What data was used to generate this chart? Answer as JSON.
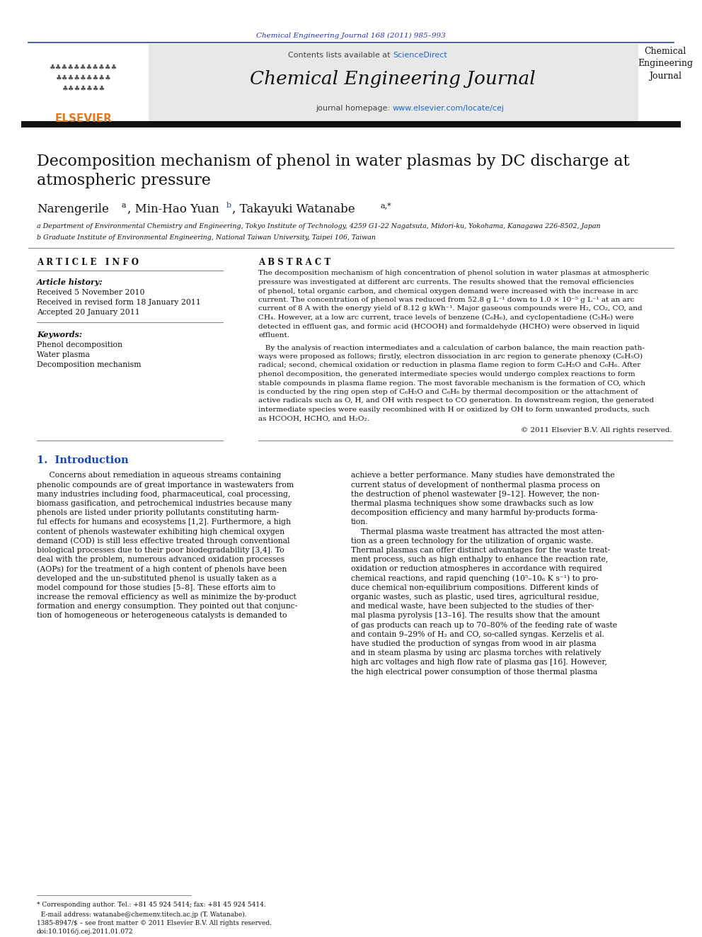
{
  "journal_ref": "Chemical Engineering Journal 168 (2011) 985–993",
  "contents_line": "Contents lists available at ScienceDirect",
  "journal_name": "Chemical Engineering Journal",
  "journal_homepage": "journal homepage: www.elsevier.com/locate/cej",
  "journal_abbrev": "Chemical\nEngineering\nJournal",
  "title": "Decomposition mechanism of phenol in water plasmas by DC discharge at\natmospheric pressure",
  "affil_a": "a Department of Environmental Chemistry and Engineering, Tokyo Institute of Technology, 4259 G1-22 Nagatsuta, Midori-ku, Yokohama, Kanagawa 226-8502, Japan",
  "affil_b": "b Graduate Institute of Environmental Engineering, National Taiwan University, Taipei 106, Taiwan",
  "article_info_title": "A R T I C L E   I N F O",
  "article_history_label": "Article history:",
  "received": "Received 5 November 2010",
  "received_revised": "Received in revised form 18 January 2011",
  "accepted": "Accepted 20 January 2011",
  "keywords_label": "Keywords:",
  "keyword1": "Phenol decomposition",
  "keyword2": "Water plasma",
  "keyword3": "Decomposition mechanism",
  "abstract_title": "A B S T R A C T",
  "copyright": "© 2011 Elsevier B.V. All rights reserved.",
  "intro_section": "1.  Introduction",
  "bg_color": "#ffffff",
  "header_bg": "#e8e8e8",
  "journal_ref_color": "#2233aa",
  "sciencedirect_color": "#2266cc",
  "url_color": "#2266cc",
  "dark_bar_color": "#111111",
  "elsevier_orange": "#e07820",
  "elsevier_blue": "#2244aa",
  "intro_blue": "#1144bb"
}
